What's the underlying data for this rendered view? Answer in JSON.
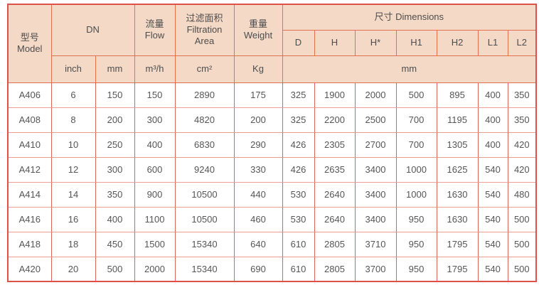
{
  "colors": {
    "header_background": "#f4d9c7",
    "header_border": "#e0714e",
    "outer_border": "#dc5246",
    "body_grid_vertical": "#dd6359",
    "body_grid_horizontal": "#ee9e95",
    "header_text": "#4d4d4d",
    "body_text": "#565656"
  },
  "header": {
    "model": "型号\nModel",
    "dn": "DN",
    "flow": "流量\nFlow",
    "filtration": "过滤面积\nFiltration\nArea",
    "weight": "重量\nWeight",
    "dimensions": "尺寸 Dimensions",
    "dim_cols": [
      "D",
      "H",
      "H*",
      "H1",
      "H2",
      "L1",
      "L2"
    ],
    "units": {
      "inch": "inch",
      "mm": "mm",
      "flow": "m³/h",
      "area": "cm²",
      "weight": "Kg",
      "dims": "mm"
    }
  },
  "columns": [
    "model",
    "dn-inch",
    "dn-mm",
    "flow",
    "filtration-area",
    "weight",
    "dim-d",
    "dim-h",
    "dim-h-star",
    "dim-h1",
    "dim-h2",
    "dim-l1",
    "dim-l2"
  ],
  "rows": [
    {
      "cells": [
        "A406",
        "6",
        "150",
        "150",
        "2890",
        "175",
        "325",
        "1900",
        "2000",
        "500",
        "895",
        "400",
        "350"
      ]
    },
    {
      "cells": [
        "A408",
        "8",
        "200",
        "300",
        "4820",
        "200",
        "325",
        "2200",
        "2500",
        "700",
        "1195",
        "400",
        "350"
      ]
    },
    {
      "cells": [
        "A410",
        "10",
        "250",
        "400",
        "6830",
        "290",
        "426",
        "2305",
        "2700",
        "700",
        "1305",
        "400",
        "420"
      ]
    },
    {
      "cells": [
        "A412",
        "12",
        "300",
        "600",
        "9240",
        "330",
        "426",
        "2635",
        "3400",
        "1000",
        "1625",
        "540",
        "420"
      ]
    },
    {
      "cells": [
        "A414",
        "14",
        "350",
        "900",
        "10500",
        "440",
        "530",
        "2640",
        "3400",
        "1000",
        "1630",
        "540",
        "480"
      ]
    },
    {
      "cells": [
        "A416",
        "16",
        "400",
        "1100",
        "10500",
        "460",
        "530",
        "2640",
        "3400",
        "950",
        "1630",
        "540",
        "500"
      ]
    },
    {
      "cells": [
        "A418",
        "18",
        "450",
        "1500",
        "15340",
        "640",
        "610",
        "2805",
        "3710",
        "950",
        "1795",
        "540",
        "500"
      ]
    },
    {
      "cells": [
        "A420",
        "20",
        "500",
        "2000",
        "15340",
        "690",
        "610",
        "2805",
        "3700",
        "950",
        "1795",
        "540",
        "500"
      ]
    }
  ]
}
